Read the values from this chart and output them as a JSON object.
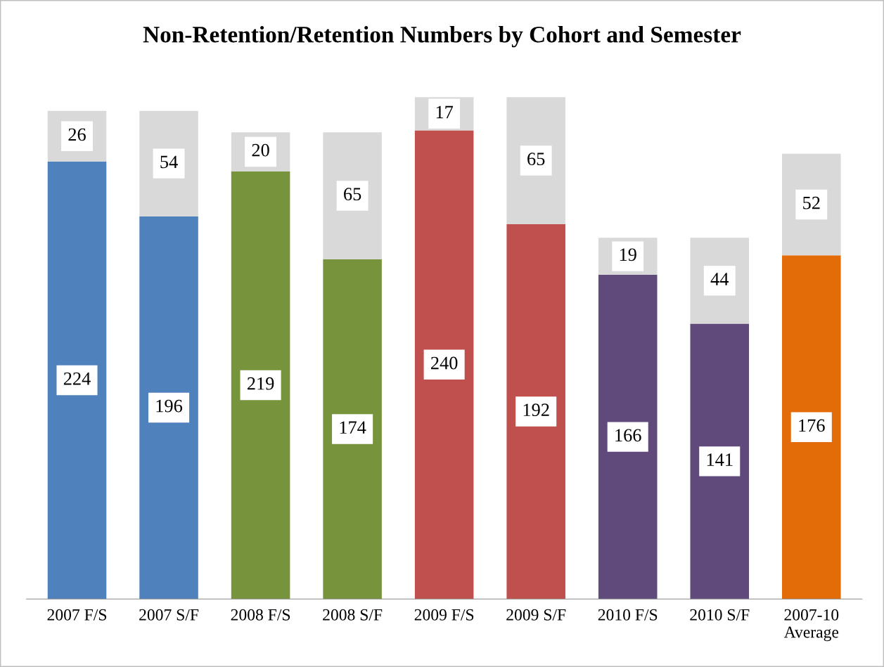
{
  "chart_data": {
    "type": "bar",
    "title": "Non-Retention/Retention Numbers by Cohort and Semester",
    "categories": [
      "2007 F/S",
      "2007 S/F",
      "2008 F/S",
      "2008 S/F",
      "2009 F/S",
      "2009 S/F",
      "2010 F/S",
      "2010 S/F",
      "2007-10\nAverage"
    ],
    "stacked": true,
    "data_labels": true,
    "grid": false,
    "legend": false,
    "series": [
      {
        "colors": [
          "#4f81bd",
          "#4f81bd",
          "#77933c",
          "#77933c",
          "#c0504d",
          "#c0504d",
          "#604a7b",
          "#604a7b",
          "#e36c09"
        ],
        "values": [
          224,
          196,
          219,
          174,
          240,
          192,
          166,
          141,
          176
        ]
      },
      {
        "color": "#d9d9d9",
        "values": [
          26,
          54,
          20,
          65,
          17,
          65,
          19,
          44,
          52
        ]
      }
    ]
  }
}
